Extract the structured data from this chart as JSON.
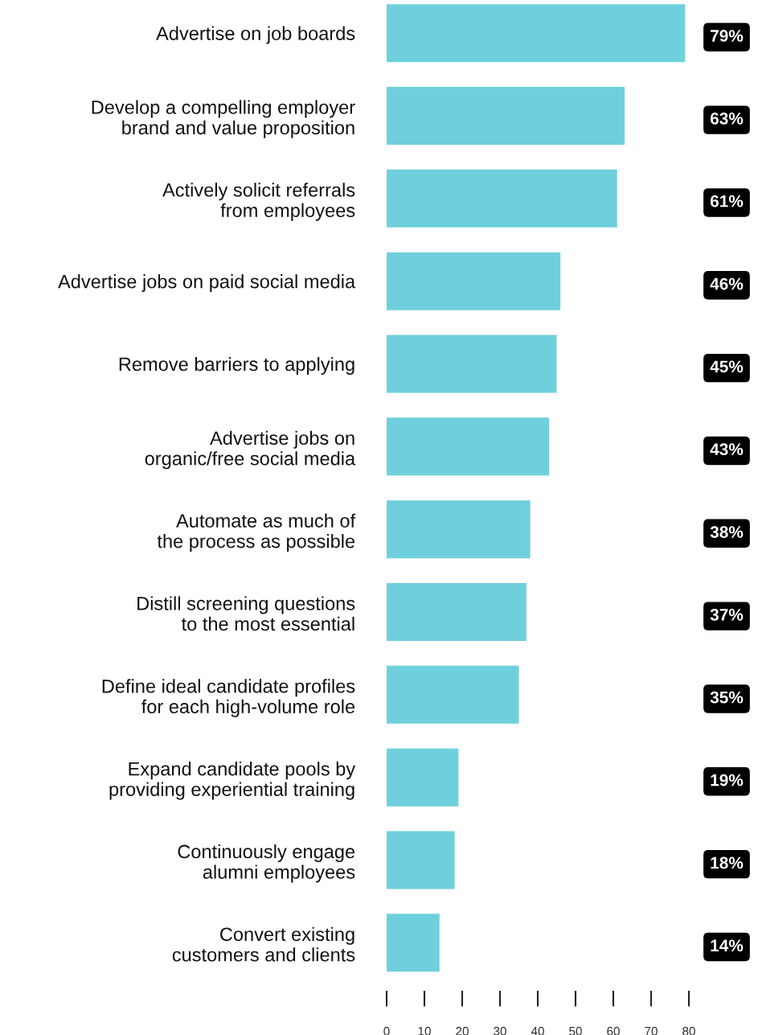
{
  "chart_data": {
    "type": "bar",
    "orientation": "horizontal",
    "categories": [
      "Advertise on job boards",
      "Develop a compelling employer\nbrand and value proposition",
      "Actively solicit referrals\nfrom employees",
      "Advertise jobs on paid social media",
      "Remove barriers to applying",
      "Advertise jobs on\norganic/free social media",
      "Automate as much of\nthe process as possible",
      "Distill screening questions\nto the most essential",
      "Define ideal candidate profiles\nfor each high-volume role",
      "Expand candidate pools by\nproviding experiential training",
      "Continuously engage\nalumni employees",
      "Convert existing\ncustomers and clients"
    ],
    "values": [
      79,
      63,
      61,
      46,
      45,
      43,
      38,
      37,
      35,
      19,
      18,
      14
    ],
    "value_labels": [
      "79%",
      "63%",
      "61%",
      "46%",
      "45%",
      "43%",
      "38%",
      "37%",
      "35%",
      "19%",
      "18%",
      "14%"
    ],
    "color": "#6fd0dd",
    "xlim": [
      0,
      80
    ],
    "xticks": [
      0,
      10,
      20,
      30,
      40,
      50,
      60,
      70,
      80
    ],
    "grid": false
  }
}
